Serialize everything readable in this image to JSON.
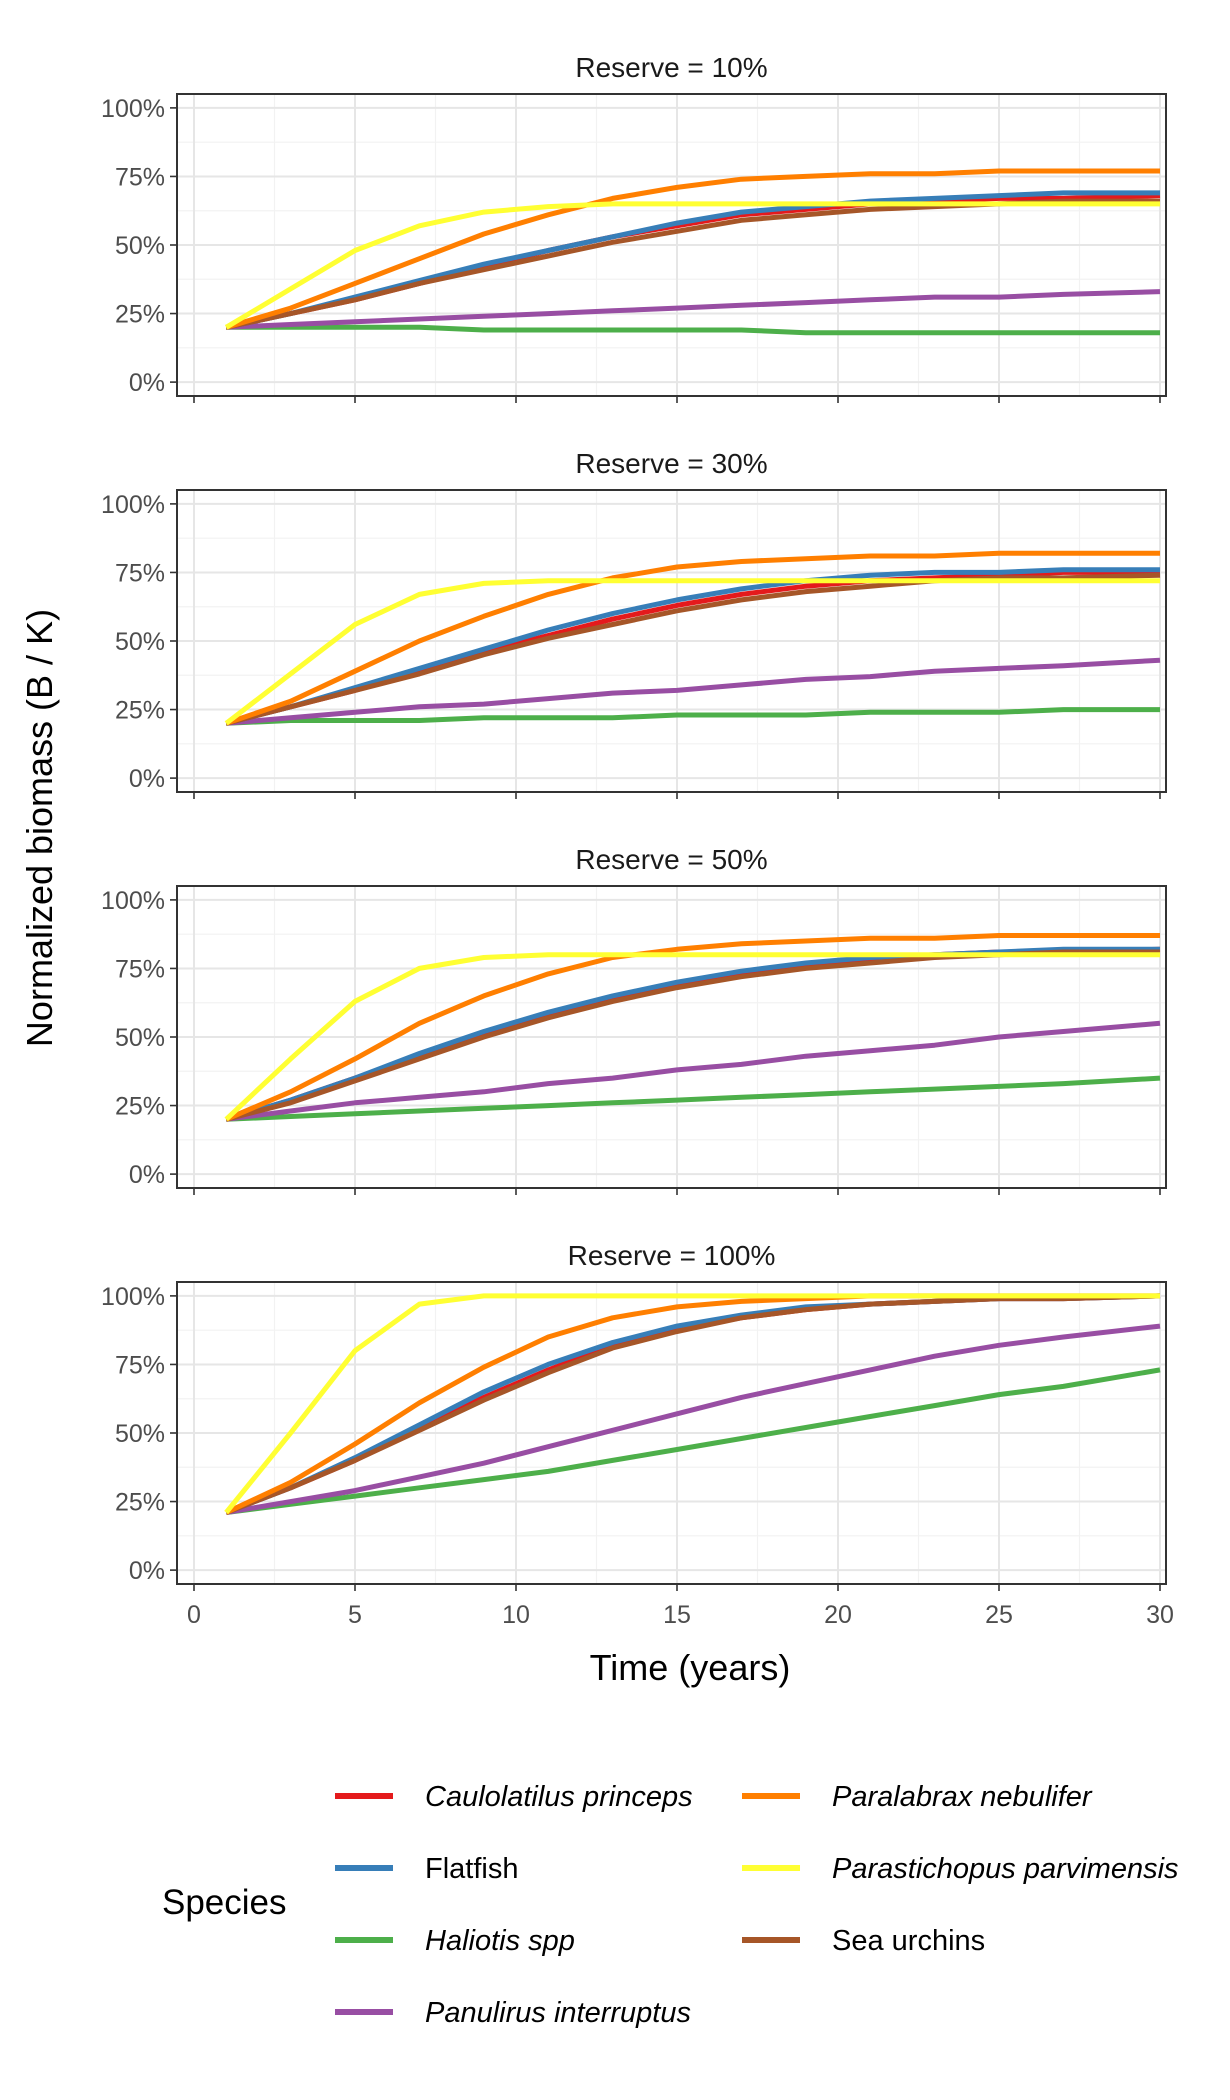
{
  "chart_data": {
    "type": "line",
    "facet_label_prefix": "Reserve = ",
    "xlabel": "Time (years)",
    "ylabel": "Normalized biomass (B / K)",
    "xlim": [
      0,
      30
    ],
    "ylim": [
      0,
      1
    ],
    "x_ticks": [
      0,
      5,
      10,
      15,
      20,
      25,
      30
    ],
    "y_ticks": [
      0,
      0.25,
      0.5,
      0.75,
      1.0
    ],
    "y_tick_labels": [
      "0%",
      "25%",
      "50%",
      "75%",
      "100%"
    ],
    "grid": true,
    "legend": {
      "title": "Species",
      "position": "bottom",
      "entries": [
        {
          "name": "Caulolatilus princeps",
          "color": "#E41A1C",
          "italic": true
        },
        {
          "name": "Flatfish",
          "color": "#377EB8",
          "italic": false
        },
        {
          "name": "Haliotis spp",
          "color": "#4DAF4A",
          "italic": true
        },
        {
          "name": "Panulirus interruptus",
          "color": "#984EA3",
          "italic": true
        },
        {
          "name": "Paralabrax nebulifer",
          "color": "#FF7F00",
          "italic": true
        },
        {
          "name": "Parastichopus parvimensis",
          "color": "#FFFF33",
          "italic": true
        },
        {
          "name": "Sea urchins",
          "color": "#A65628",
          "italic": false
        }
      ]
    },
    "x": [
      1,
      3,
      5,
      7,
      9,
      11,
      13,
      15,
      17,
      19,
      21,
      23,
      25,
      27,
      30
    ],
    "panels": [
      {
        "reserve": "10%",
        "series": [
          {
            "name": "Caulolatilus princeps",
            "values": [
              0.2,
              0.25,
              0.3,
              0.36,
              0.42,
              0.48,
              0.53,
              0.57,
              0.61,
              0.63,
              0.65,
              0.66,
              0.67,
              0.67,
              0.68
            ]
          },
          {
            "name": "Flatfish",
            "values": [
              0.2,
              0.25,
              0.31,
              0.37,
              0.43,
              0.48,
              0.53,
              0.58,
              0.62,
              0.64,
              0.66,
              0.67,
              0.68,
              0.69,
              0.69
            ]
          },
          {
            "name": "Haliotis spp",
            "values": [
              0.2,
              0.2,
              0.2,
              0.2,
              0.19,
              0.19,
              0.19,
              0.19,
              0.19,
              0.18,
              0.18,
              0.18,
              0.18,
              0.18,
              0.18
            ]
          },
          {
            "name": "Panulirus interruptus",
            "values": [
              0.2,
              0.21,
              0.22,
              0.23,
              0.24,
              0.25,
              0.26,
              0.27,
              0.28,
              0.29,
              0.3,
              0.31,
              0.31,
              0.32,
              0.33
            ]
          },
          {
            "name": "Paralabrax nebulifer",
            "values": [
              0.2,
              0.27,
              0.36,
              0.45,
              0.54,
              0.61,
              0.67,
              0.71,
              0.74,
              0.75,
              0.76,
              0.76,
              0.77,
              0.77,
              0.77
            ]
          },
          {
            "name": "Parastichopus parvimensis",
            "values": [
              0.2,
              0.34,
              0.48,
              0.57,
              0.62,
              0.64,
              0.65,
              0.65,
              0.65,
              0.65,
              0.65,
              0.65,
              0.65,
              0.65,
              0.65
            ]
          },
          {
            "name": "Sea urchins",
            "values": [
              0.2,
              0.25,
              0.3,
              0.36,
              0.41,
              0.46,
              0.51,
              0.55,
              0.59,
              0.61,
              0.63,
              0.64,
              0.65,
              0.66,
              0.66
            ]
          }
        ]
      },
      {
        "reserve": "30%",
        "series": [
          {
            "name": "Caulolatilus princeps",
            "values": [
              0.2,
              0.26,
              0.32,
              0.39,
              0.46,
              0.52,
              0.58,
              0.63,
              0.67,
              0.7,
              0.72,
              0.73,
              0.74,
              0.75,
              0.75
            ]
          },
          {
            "name": "Flatfish",
            "values": [
              0.2,
              0.26,
              0.33,
              0.4,
              0.47,
              0.54,
              0.6,
              0.65,
              0.69,
              0.72,
              0.74,
              0.75,
              0.75,
              0.76,
              0.76
            ]
          },
          {
            "name": "Haliotis spp",
            "values": [
              0.2,
              0.21,
              0.21,
              0.21,
              0.22,
              0.22,
              0.22,
              0.23,
              0.23,
              0.23,
              0.24,
              0.24,
              0.24,
              0.25,
              0.25
            ]
          },
          {
            "name": "Panulirus interruptus",
            "values": [
              0.2,
              0.22,
              0.24,
              0.26,
              0.27,
              0.29,
              0.31,
              0.32,
              0.34,
              0.36,
              0.37,
              0.39,
              0.4,
              0.41,
              0.43
            ]
          },
          {
            "name": "Paralabrax nebulifer",
            "values": [
              0.2,
              0.28,
              0.39,
              0.5,
              0.59,
              0.67,
              0.73,
              0.77,
              0.79,
              0.8,
              0.81,
              0.81,
              0.82,
              0.82,
              0.82
            ]
          },
          {
            "name": "Parastichopus parvimensis",
            "values": [
              0.2,
              0.38,
              0.56,
              0.67,
              0.71,
              0.72,
              0.72,
              0.72,
              0.72,
              0.72,
              0.72,
              0.72,
              0.72,
              0.72,
              0.72
            ]
          },
          {
            "name": "Sea urchins",
            "values": [
              0.2,
              0.26,
              0.32,
              0.38,
              0.45,
              0.51,
              0.56,
              0.61,
              0.65,
              0.68,
              0.7,
              0.72,
              0.73,
              0.73,
              0.74
            ]
          }
        ]
      },
      {
        "reserve": "50%",
        "series": [
          {
            "name": "Caulolatilus princeps",
            "values": [
              0.2,
              0.27,
              0.35,
              0.43,
              0.51,
              0.58,
              0.64,
              0.69,
              0.73,
              0.76,
              0.78,
              0.8,
              0.81,
              0.81,
              0.82
            ]
          },
          {
            "name": "Flatfish",
            "values": [
              0.2,
              0.27,
              0.35,
              0.44,
              0.52,
              0.59,
              0.65,
              0.7,
              0.74,
              0.77,
              0.79,
              0.8,
              0.81,
              0.82,
              0.82
            ]
          },
          {
            "name": "Haliotis spp",
            "values": [
              0.2,
              0.21,
              0.22,
              0.23,
              0.24,
              0.25,
              0.26,
              0.27,
              0.28,
              0.29,
              0.3,
              0.31,
              0.32,
              0.33,
              0.35
            ]
          },
          {
            "name": "Panulirus interruptus",
            "values": [
              0.2,
              0.23,
              0.26,
              0.28,
              0.3,
              0.33,
              0.35,
              0.38,
              0.4,
              0.43,
              0.45,
              0.47,
              0.5,
              0.52,
              0.55
            ]
          },
          {
            "name": "Paralabrax nebulifer",
            "values": [
              0.2,
              0.3,
              0.42,
              0.55,
              0.65,
              0.73,
              0.79,
              0.82,
              0.84,
              0.85,
              0.86,
              0.86,
              0.87,
              0.87,
              0.87
            ]
          },
          {
            "name": "Parastichopus parvimensis",
            "values": [
              0.2,
              0.42,
              0.63,
              0.75,
              0.79,
              0.8,
              0.8,
              0.8,
              0.8,
              0.8,
              0.8,
              0.8,
              0.8,
              0.8,
              0.8
            ]
          },
          {
            "name": "Sea urchins",
            "values": [
              0.2,
              0.26,
              0.34,
              0.42,
              0.5,
              0.57,
              0.63,
              0.68,
              0.72,
              0.75,
              0.77,
              0.79,
              0.8,
              0.81,
              0.81
            ]
          }
        ]
      },
      {
        "reserve": "100%",
        "series": [
          {
            "name": "Caulolatilus princeps",
            "values": [
              0.21,
              0.3,
              0.4,
              0.52,
              0.63,
              0.73,
              0.82,
              0.88,
              0.92,
              0.95,
              0.97,
              0.98,
              0.99,
              0.99,
              1.0
            ]
          },
          {
            "name": "Flatfish",
            "values": [
              0.21,
              0.3,
              0.41,
              0.53,
              0.65,
              0.75,
              0.83,
              0.89,
              0.93,
              0.96,
              0.97,
              0.98,
              0.99,
              0.99,
              1.0
            ]
          },
          {
            "name": "Haliotis spp",
            "values": [
              0.21,
              0.24,
              0.27,
              0.3,
              0.33,
              0.36,
              0.4,
              0.44,
              0.48,
              0.52,
              0.56,
              0.6,
              0.64,
              0.67,
              0.73
            ]
          },
          {
            "name": "Panulirus interruptus",
            "values": [
              0.21,
              0.25,
              0.29,
              0.34,
              0.39,
              0.45,
              0.51,
              0.57,
              0.63,
              0.68,
              0.73,
              0.78,
              0.82,
              0.85,
              0.89
            ]
          },
          {
            "name": "Paralabrax nebulifer",
            "values": [
              0.21,
              0.32,
              0.46,
              0.61,
              0.74,
              0.85,
              0.92,
              0.96,
              0.98,
              0.99,
              1.0,
              1.0,
              1.0,
              1.0,
              1.0
            ]
          },
          {
            "name": "Parastichopus parvimensis",
            "values": [
              0.21,
              0.5,
              0.8,
              0.97,
              1.0,
              1.0,
              1.0,
              1.0,
              1.0,
              1.0,
              1.0,
              1.0,
              1.0,
              1.0,
              1.0
            ]
          },
          {
            "name": "Sea urchins",
            "values": [
              0.21,
              0.3,
              0.4,
              0.51,
              0.62,
              0.72,
              0.81,
              0.87,
              0.92,
              0.95,
              0.97,
              0.98,
              0.99,
              0.99,
              1.0
            ]
          }
        ]
      }
    ]
  }
}
